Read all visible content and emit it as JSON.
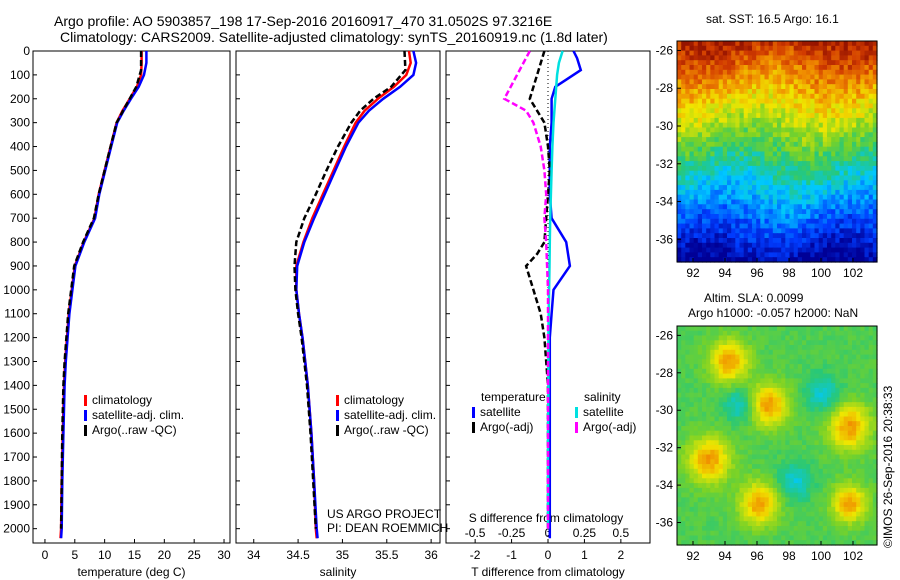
{
  "title_line1": "Argo profile: AO 5903857_198 17-Sep-2016 20160917_470 31.0502S 97.3216E",
  "title_line2": "Climatology: CARS2009. Satellite-adjusted climatology: synTS_20160919.nc (1.8d later)",
  "project_line1": "US ARGO PROJECT",
  "project_line2": "PI: DEAN ROEMMICH",
  "sst_title": "sat. SST: 16.5 Argo: 16.1",
  "sla_line1": "Altim. SLA: 0.0099",
  "sla_line2": "Argo h1000: -0.057 h2000: NaN",
  "imos_stamp": "©IMOS 26-Sep-2016 20:38:33",
  "colors": {
    "climatology": "#ff0000",
    "satellite": "#0000ff",
    "argo": "#000000",
    "sal_satellite": "#00e0e0",
    "sal_argo": "#ff00ff"
  },
  "chart_data": [
    {
      "type": "line",
      "xlabel": "temperature (deg C)",
      "xlim": [
        -2,
        31
      ],
      "xticks": [
        "0",
        "5",
        "10",
        "15",
        "20",
        "25",
        "30"
      ],
      "ylim": [
        0,
        2060
      ],
      "yticks": [
        "0",
        "100",
        "200",
        "300",
        "400",
        "500",
        "600",
        "700",
        "800",
        "900",
        "1000",
        "1100",
        "1200",
        "1300",
        "1400",
        "1500",
        "1600",
        "1700",
        "1800",
        "1900",
        "2000"
      ],
      "legend": [
        "climatology",
        "satellite-adj. clim.",
        "Argo(..raw -QC)"
      ],
      "series": [
        {
          "name": "climatology",
          "x": [
            16.2,
            16.2,
            16.1,
            15.4,
            14.2,
            13.0,
            12.0,
            11.0,
            10.0,
            9.0,
            8.3,
            6.5,
            5.0,
            4.5,
            4.0,
            3.7,
            3.4,
            3.2,
            3.0,
            2.8,
            2.7,
            2.6
          ],
          "y": [
            0,
            50,
            100,
            150,
            200,
            250,
            300,
            400,
            500,
            600,
            700,
            800,
            900,
            1000,
            1100,
            1200,
            1300,
            1400,
            1600,
            1800,
            2000,
            2040
          ]
        },
        {
          "name": "satellite-adj. clim.",
          "x": [
            17.0,
            17.0,
            16.6,
            15.7,
            14.4,
            13.2,
            12.1,
            11.1,
            10.1,
            9.1,
            8.4,
            6.6,
            5.1,
            4.6,
            4.1,
            3.8,
            3.5,
            3.3,
            3.1,
            2.9,
            2.8,
            2.7
          ],
          "y": [
            0,
            50,
            100,
            150,
            200,
            250,
            300,
            400,
            500,
            600,
            700,
            800,
            900,
            1000,
            1100,
            1200,
            1300,
            1400,
            1600,
            1800,
            2000,
            2040
          ]
        },
        {
          "name": "Argo(..raw -QC)",
          "x": [
            16.1,
            16.1,
            15.3,
            14.2,
            13.1,
            12.0,
            11.0,
            10.0,
            9.0,
            8.2,
            6.4,
            4.9,
            4.4,
            3.9,
            3.6,
            3.3,
            3.1,
            2.9,
            2.8,
            2.7
          ],
          "y": [
            0,
            80,
            150,
            200,
            250,
            300,
            400,
            500,
            600,
            700,
            800,
            900,
            1000,
            1100,
            1200,
            1300,
            1400,
            1600,
            1800,
            2000
          ]
        }
      ]
    },
    {
      "type": "line",
      "xlabel": "salinity",
      "xlim": [
        33.8,
        36.1
      ],
      "xticks": [
        "34",
        "34.5",
        "35",
        "35.5",
        "36"
      ],
      "ylim": [
        0,
        2060
      ],
      "legend": [
        "climatology",
        "satellite-adj. clim.",
        "Argo(..raw -QC)"
      ],
      "series": [
        {
          "name": "climatology",
          "x": [
            35.75,
            35.77,
            35.72,
            35.58,
            35.4,
            35.25,
            35.15,
            35.02,
            34.9,
            34.78,
            34.66,
            34.56,
            34.48,
            34.48,
            34.51,
            34.55,
            34.58,
            34.61,
            34.65,
            34.68,
            34.7,
            34.71
          ],
          "y": [
            0,
            50,
            100,
            150,
            200,
            250,
            300,
            400,
            500,
            600,
            700,
            800,
            900,
            1000,
            1100,
            1200,
            1300,
            1400,
            1600,
            1800,
            2000,
            2040
          ]
        },
        {
          "name": "satellite-adj. clim.",
          "x": [
            35.8,
            35.83,
            35.8,
            35.65,
            35.46,
            35.3,
            35.18,
            35.04,
            34.92,
            34.8,
            34.68,
            34.57,
            34.49,
            34.48,
            34.51,
            34.55,
            34.58,
            34.61,
            34.65,
            34.68,
            34.71,
            34.72
          ],
          "y": [
            0,
            50,
            100,
            150,
            200,
            250,
            300,
            400,
            500,
            600,
            700,
            800,
            900,
            1000,
            1100,
            1200,
            1300,
            1400,
            1600,
            1800,
            2000,
            2040
          ]
        },
        {
          "name": "Argo(..raw -QC)",
          "x": [
            35.7,
            35.71,
            35.55,
            35.35,
            35.2,
            35.1,
            34.95,
            34.82,
            34.7,
            34.57,
            34.48,
            34.46,
            34.47,
            34.5,
            34.54,
            34.57,
            34.6,
            34.64,
            34.67,
            34.7
          ],
          "y": [
            0,
            80,
            150,
            200,
            250,
            300,
            400,
            500,
            600,
            700,
            800,
            900,
            1000,
            1100,
            1200,
            1300,
            1400,
            1600,
            1800,
            2000
          ]
        }
      ]
    },
    {
      "type": "line",
      "xlabel": "T difference from climatology",
      "xlabel2": "S difference from climatology",
      "xlim": [
        -2.8,
        2.8
      ],
      "xticks": [
        "-2",
        "-1",
        "0",
        "1",
        "2"
      ],
      "xticks_s": [
        "-0.5",
        "-0.25",
        "0",
        "0.25",
        "0.5"
      ],
      "ylim": [
        0,
        2060
      ],
      "legend_groups": [
        "temperature",
        "salinity"
      ],
      "legend": [
        "satellite",
        "Argo(-adj)",
        "satellite",
        "Argo(-adj)"
      ],
      "series": [
        {
          "name": "satellite",
          "group": "temperature",
          "x": [
            0.7,
            0.8,
            0.9,
            0.5,
            0.2,
            0.1,
            0.1,
            0.05,
            0.05,
            0.05,
            0.1,
            0.5,
            0.6,
            0.15,
            0.1,
            0.05,
            0.05,
            0.05,
            0.05,
            0.05,
            0.05
          ],
          "y": [
            0,
            30,
            80,
            120,
            150,
            200,
            300,
            400,
            500,
            600,
            700,
            800,
            900,
            1000,
            1100,
            1200,
            1400,
            1600,
            1800,
            2000,
            2040
          ]
        },
        {
          "name": "Argo(-adj)",
          "group": "temperature",
          "x": [
            -0.1,
            -0.3,
            -0.5,
            -0.3,
            -0.1,
            0.0,
            0.05,
            0.0,
            -0.05,
            -0.1,
            -0.3,
            -0.6,
            -0.4,
            -0.2,
            -0.1,
            -0.05,
            0.0,
            0.0,
            0.0
          ],
          "y": [
            0,
            100,
            200,
            250,
            300,
            400,
            500,
            600,
            700,
            800,
            850,
            900,
            1000,
            1100,
            1200,
            1300,
            1400,
            1700,
            2000
          ]
        },
        {
          "name": "satellite",
          "group": "salinity",
          "x": [
            0.4,
            0.3,
            0.25,
            0.2,
            0.15,
            0.12,
            0.1,
            0.08,
            0.06,
            0.05,
            0.04,
            0.03,
            0.02,
            0.01,
            0.01,
            0.0,
            0.0,
            0.0
          ],
          "y": [
            0,
            50,
            100,
            200,
            300,
            400,
            500,
            600,
            700,
            800,
            900,
            1000,
            1100,
            1200,
            1400,
            1600,
            1800,
            2000
          ]
        },
        {
          "name": "Argo(-adj)",
          "group": "salinity",
          "x": [
            -0.5,
            -1.2,
            -0.6,
            -0.4,
            -0.2,
            -0.1,
            -0.05,
            -0.1,
            -0.05,
            0.0,
            0.0,
            0.0,
            0.0,
            0.0
          ],
          "y": [
            0,
            200,
            250,
            300,
            400,
            500,
            600,
            700,
            800,
            1000,
            1300,
            1600,
            1800,
            2000
          ]
        }
      ]
    },
    {
      "type": "heatmap",
      "title": "sat. SST: 16.5 Argo: 16.1",
      "xticks": [
        "92",
        "94",
        "96",
        "98",
        "100",
        "102"
      ],
      "yticks": [
        "-26",
        "-28",
        "-30",
        "-32",
        "-34",
        "-36"
      ],
      "xlim": [
        91,
        103.5
      ],
      "ylim": [
        -37.2,
        -25.5
      ]
    },
    {
      "type": "heatmap",
      "title": "Altim. SLA: 0.0099 / Argo h1000: -0.057 h2000: NaN",
      "xticks": [
        "92",
        "94",
        "96",
        "98",
        "100",
        "102"
      ],
      "yticks": [
        "-26",
        "-28",
        "-30",
        "-32",
        "-34",
        "-36"
      ],
      "xlim": [
        91,
        103.5
      ],
      "ylim": [
        -37.2,
        -25.5
      ]
    }
  ]
}
